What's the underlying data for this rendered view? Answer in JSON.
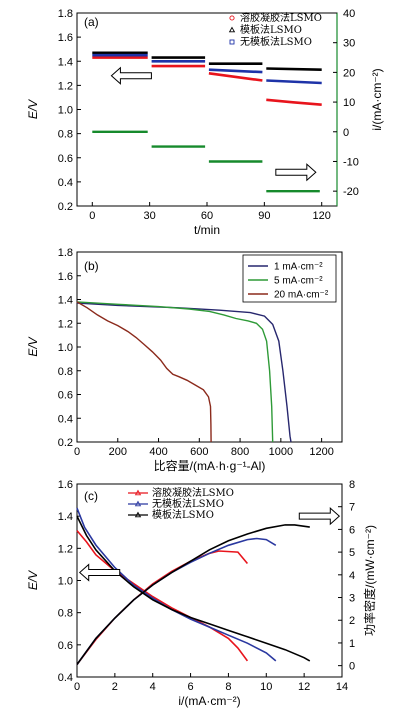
{
  "chart_data": [
    {
      "panel": "(a)",
      "type": "line",
      "xlabel": "t/min",
      "ylabel_left": "E/V",
      "ylabel_right": "i/(mA·cm⁻²)",
      "xlim": [
        -8,
        128
      ],
      "ylim": [
        0.2,
        1.8
      ],
      "ylim_right": [
        -25,
        40
      ],
      "xticks": [
        0,
        30,
        60,
        90,
        120
      ],
      "yticks": [
        0.2,
        0.4,
        0.6,
        0.8,
        1.0,
        1.2,
        1.4,
        1.6,
        1.8
      ],
      "yticks_right": [
        -20,
        -10,
        0,
        10,
        20,
        30,
        40
      ],
      "legend": "top-right",
      "series": [
        {
          "name": "溶胶凝胶法LSMO",
          "color": "#e8141c",
          "marker": "circle",
          "segments": [
            [
              [
                0,
                1.43
              ],
              [
                29,
                1.43
              ]
            ],
            [
              [
                31,
                1.36
              ],
              [
                59,
                1.36
              ]
            ],
            [
              [
                61,
                1.3
              ],
              [
                75,
                1.27
              ],
              [
                89,
                1.24
              ]
            ],
            [
              [
                91,
                1.08
              ],
              [
                105,
                1.06
              ],
              [
                120,
                1.04
              ]
            ]
          ]
        },
        {
          "name": "模板法LSMO",
          "color": "#000000",
          "marker": "triangle",
          "segments": [
            [
              [
                0,
                1.47
              ],
              [
                29,
                1.47
              ]
            ],
            [
              [
                31,
                1.43
              ],
              [
                59,
                1.43
              ]
            ],
            [
              [
                61,
                1.38
              ],
              [
                89,
                1.38
              ]
            ],
            [
              [
                91,
                1.34
              ],
              [
                120,
                1.33
              ]
            ]
          ]
        },
        {
          "name": "无模板法LSMO",
          "color": "#1e33a8",
          "marker": "square",
          "segments": [
            [
              [
                0,
                1.45
              ],
              [
                29,
                1.45
              ]
            ],
            [
              [
                31,
                1.4
              ],
              [
                59,
                1.4
              ]
            ],
            [
              [
                61,
                1.33
              ],
              [
                89,
                1.31
              ]
            ],
            [
              [
                91,
                1.24
              ],
              [
                120,
                1.22
              ]
            ]
          ]
        }
      ],
      "current_steps": {
        "color": "#168a2c",
        "axis": "right",
        "segments": [
          [
            [
              0,
              0
            ],
            [
              29,
              0
            ]
          ],
          [
            [
              31,
              -5
            ],
            [
              59,
              -5
            ]
          ],
          [
            [
              61,
              -10
            ],
            [
              89,
              -10
            ]
          ],
          [
            [
              91,
              -20
            ],
            [
              119,
              -20
            ]
          ]
        ]
      },
      "arrows": [
        {
          "x": 10,
          "y": 1.28,
          "direction": "left"
        },
        {
          "x": 96,
          "y": 0.48,
          "direction": "right"
        }
      ]
    },
    {
      "panel": "(b)",
      "type": "line",
      "xlabel": "比容量/(mA·h·g⁻¹-Al)",
      "ylabel": "E/V",
      "xlim": [
        0,
        1300
      ],
      "ylim": [
        0.2,
        1.8
      ],
      "xticks": [
        0,
        200,
        400,
        600,
        800,
        1000,
        1200
      ],
      "yticks": [
        0.2,
        0.4,
        0.6,
        0.8,
        1.0,
        1.2,
        1.4,
        1.6,
        1.8
      ],
      "legend": "top-right",
      "series": [
        {
          "name": "1 mA·cm⁻²",
          "color": "#27276e",
          "points": [
            [
              0,
              1.37
            ],
            [
              200,
              1.35
            ],
            [
              500,
              1.33
            ],
            [
              700,
              1.31
            ],
            [
              850,
              1.29
            ],
            [
              920,
              1.26
            ],
            [
              960,
              1.19
            ],
            [
              990,
              1.05
            ],
            [
              1010,
              0.8
            ],
            [
              1030,
              0.5
            ],
            [
              1045,
              0.25
            ],
            [
              1050,
              0.2
            ]
          ]
        },
        {
          "name": "5 mA·cm⁻²",
          "color": "#2e9a37",
          "points": [
            [
              0,
              1.38
            ],
            [
              200,
              1.36
            ],
            [
              400,
              1.34
            ],
            [
              550,
              1.32
            ],
            [
              650,
              1.3
            ],
            [
              720,
              1.27
            ],
            [
              780,
              1.24
            ],
            [
              840,
              1.22
            ],
            [
              880,
              1.2
            ],
            [
              910,
              1.15
            ],
            [
              930,
              1.05
            ],
            [
              945,
              0.8
            ],
            [
              955,
              0.5
            ],
            [
              960,
              0.2
            ]
          ]
        },
        {
          "name": "20 mA·cm⁻²",
          "color": "#8b2a1c",
          "points": [
            [
              0,
              1.38
            ],
            [
              50,
              1.33
            ],
            [
              100,
              1.27
            ],
            [
              150,
              1.22
            ],
            [
              200,
              1.18
            ],
            [
              250,
              1.13
            ],
            [
              290,
              1.08
            ],
            [
              330,
              1.02
            ],
            [
              370,
              0.96
            ],
            [
              410,
              0.89
            ],
            [
              440,
              0.82
            ],
            [
              470,
              0.77
            ],
            [
              500,
              0.75
            ],
            [
              540,
              0.72
            ],
            [
              580,
              0.68
            ],
            [
              620,
              0.64
            ],
            [
              645,
              0.58
            ],
            [
              655,
              0.5
            ],
            [
              657,
              0.35
            ],
            [
              658,
              0.2
            ]
          ]
        }
      ]
    },
    {
      "panel": "(c)",
      "type": "line",
      "xlabel": "i/(mA·cm⁻²)",
      "ylabel_left": "E/V",
      "ylabel_right": "功率密度/(mW·cm⁻²)",
      "xlim": [
        0,
        14
      ],
      "ylim": [
        0.4,
        1.6
      ],
      "ylim_right": [
        -0.5,
        8
      ],
      "xticks": [
        0,
        2,
        4,
        6,
        8,
        10,
        12,
        14
      ],
      "yticks": [
        0.4,
        0.6,
        0.8,
        1.0,
        1.2,
        1.4,
        1.6
      ],
      "yticks_right": [
        0,
        1,
        2,
        3,
        4,
        5,
        6,
        7,
        8
      ],
      "legend": "top-center",
      "series": [
        {
          "name": "溶胶凝胶法LSMO",
          "color": "#e8141c",
          "voltage": [
            [
              0,
              1.31
            ],
            [
              0.5,
              1.24
            ],
            [
              1,
              1.16
            ],
            [
              2,
              1.06
            ],
            [
              3,
              0.98
            ],
            [
              4,
              0.9
            ],
            [
              5,
              0.83
            ],
            [
              6,
              0.77
            ],
            [
              7,
              0.71
            ],
            [
              8,
              0.64
            ],
            [
              8.5,
              0.58
            ],
            [
              9,
              0.5
            ]
          ],
          "power": [
            [
              0,
              0.05
            ],
            [
              1,
              1.15
            ],
            [
              2,
              2.1
            ],
            [
              3,
              2.9
            ],
            [
              4,
              3.6
            ],
            [
              5,
              4.15
            ],
            [
              6,
              4.6
            ],
            [
              7,
              4.95
            ],
            [
              7.5,
              5.05
            ],
            [
              8.5,
              5.0
            ],
            [
              9,
              4.5
            ]
          ]
        },
        {
          "name": "无模板法LSMO",
          "color": "#2a38a0",
          "voltage": [
            [
              0,
              1.45
            ],
            [
              0.4,
              1.33
            ],
            [
              1,
              1.22
            ],
            [
              2,
              1.08
            ],
            [
              3,
              0.97
            ],
            [
              4,
              0.89
            ],
            [
              5,
              0.82
            ],
            [
              6,
              0.76
            ],
            [
              7,
              0.71
            ],
            [
              8,
              0.66
            ],
            [
              9,
              0.61
            ],
            [
              10,
              0.55
            ],
            [
              10.5,
              0.5
            ]
          ],
          "power": [
            [
              0,
              0.05
            ],
            [
              1,
              1.2
            ],
            [
              2,
              2.1
            ],
            [
              3,
              2.9
            ],
            [
              4,
              3.55
            ],
            [
              5,
              4.1
            ],
            [
              6,
              4.55
            ],
            [
              7,
              4.95
            ],
            [
              8,
              5.3
            ],
            [
              9,
              5.55
            ],
            [
              9.5,
              5.6
            ],
            [
              10,
              5.55
            ],
            [
              10.5,
              5.3
            ]
          ]
        },
        {
          "name": "模板法LSMO",
          "color": "#000000",
          "voltage": [
            [
              0,
              1.4
            ],
            [
              0.5,
              1.28
            ],
            [
              1,
              1.19
            ],
            [
              2,
              1.06
            ],
            [
              3,
              0.96
            ],
            [
              4,
              0.88
            ],
            [
              5,
              0.82
            ],
            [
              6,
              0.77
            ],
            [
              7,
              0.73
            ],
            [
              8,
              0.69
            ],
            [
              9,
              0.65
            ],
            [
              10,
              0.61
            ],
            [
              11,
              0.57
            ],
            [
              12,
              0.52
            ],
            [
              12.3,
              0.5
            ]
          ],
          "power": [
            [
              0,
              0.05
            ],
            [
              1,
              1.2
            ],
            [
              2,
              2.1
            ],
            [
              3,
              2.9
            ],
            [
              4,
              3.55
            ],
            [
              5,
              4.1
            ],
            [
              6,
              4.6
            ],
            [
              7,
              5.1
            ],
            [
              8,
              5.5
            ],
            [
              9,
              5.8
            ],
            [
              10,
              6.05
            ],
            [
              11,
              6.2
            ],
            [
              11.5,
              6.2
            ],
            [
              12.3,
              6.1
            ]
          ]
        }
      ],
      "arrows": [
        {
          "x": 1.2,
          "y": 1.05,
          "direction": "left"
        },
        {
          "x": 12.8,
          "y": 1.4,
          "direction": "right"
        }
      ]
    }
  ]
}
